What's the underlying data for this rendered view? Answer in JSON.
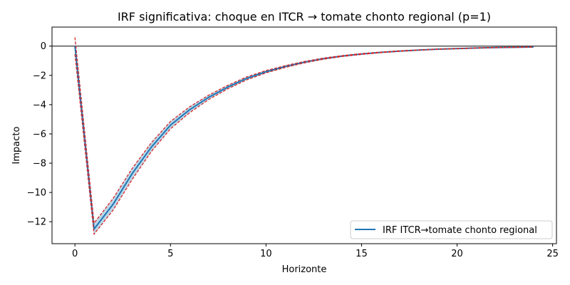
{
  "chart_data": {
    "type": "line",
    "title": "IRF significativa: choque en ITCR → tomate chonto regional (p=1)",
    "xlabel": "Horizonte",
    "ylabel": "Impacto",
    "xlim": [
      -1.2,
      25.2
    ],
    "ylim": [
      -13.5,
      1.3
    ],
    "xticks": [
      0,
      5,
      10,
      15,
      20,
      25
    ],
    "yticks": [
      0,
      -2,
      -4,
      -6,
      -8,
      -10,
      -12
    ],
    "grid": false,
    "legend_position": "lower-right",
    "zero_line": true,
    "x": [
      0,
      1,
      2,
      3,
      4,
      5,
      6,
      7,
      8,
      9,
      10,
      11,
      12,
      13,
      14,
      15,
      16,
      17,
      18,
      19,
      20,
      21,
      22,
      23,
      24
    ],
    "series": [
      {
        "name": "IRF ITCR→tomate chonto regional",
        "color": "#1f77b4",
        "values": [
          0,
          -12.5,
          -10.8,
          -8.7,
          -6.9,
          -5.4,
          -4.35,
          -3.5,
          -2.8,
          -2.2,
          -1.75,
          -1.4,
          -1.1,
          -0.86,
          -0.68,
          -0.54,
          -0.43,
          -0.34,
          -0.27,
          -0.21,
          -0.17,
          -0.13,
          -0.1,
          -0.08,
          -0.06
        ]
      }
    ],
    "band": {
      "color": "#d62728",
      "fill": "#1f77b4",
      "lower": [
        -0.55,
        -12.85,
        -11.2,
        -9.1,
        -7.2,
        -5.65,
        -4.55,
        -3.65,
        -2.92,
        -2.3,
        -1.83,
        -1.46,
        -1.15,
        -0.9,
        -0.71,
        -0.57,
        -0.45,
        -0.36,
        -0.28,
        -0.22,
        -0.18,
        -0.14,
        -0.11,
        -0.09,
        -0.07
      ],
      "upper": [
        0.6,
        -12.1,
        -10.4,
        -8.35,
        -6.6,
        -5.15,
        -4.15,
        -3.35,
        -2.68,
        -2.1,
        -1.67,
        -1.34,
        -1.05,
        -0.82,
        -0.65,
        -0.51,
        -0.41,
        -0.32,
        -0.26,
        -0.2,
        -0.16,
        -0.12,
        -0.09,
        -0.07,
        -0.05
      ]
    }
  }
}
